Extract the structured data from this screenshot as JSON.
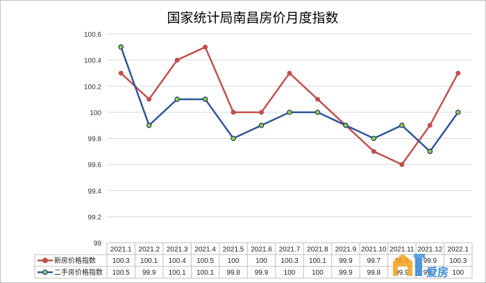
{
  "chart_data": {
    "type": "line",
    "title": "国家统计局南昌房价月度指数",
    "categories": [
      "2021.1",
      "2021.2",
      "2021.3",
      "2021.4",
      "2021.5",
      "2021.6",
      "2021.7",
      "2021.8",
      "2021.9",
      "2021.10",
      "2021.11",
      "2021.12",
      "2022.1"
    ],
    "ylim": [
      99,
      100.6
    ],
    "yticks": [
      "99",
      "99.2",
      "99.4",
      "99.6",
      "99.8",
      "100",
      "100.2",
      "100.4",
      "100.6"
    ],
    "grid": true,
    "legend": "data table below plot",
    "series": [
      {
        "name": "新房价格指数",
        "color": "#c0504d",
        "values": [
          100.3,
          100.1,
          100.4,
          100.5,
          100,
          100,
          100.3,
          100.1,
          99.9,
          99.7,
          99.6,
          99.9,
          100.3
        ],
        "labels": [
          "100.3",
          "100.1",
          "100.4",
          "100.5",
          "100",
          "100",
          "100.3",
          "100.1",
          "99.9",
          "99.7",
          "99.6",
          "99.9",
          "100.3"
        ]
      },
      {
        "name": "二手房价格指数",
        "color": "#2f5597",
        "marker_color": "#92d050",
        "values": [
          100.5,
          99.9,
          100.1,
          100.1,
          99.8,
          99.9,
          100,
          100,
          99.9,
          99.8,
          99.9,
          99.7,
          100
        ],
        "labels": [
          "100.5",
          "99.9",
          "100.1",
          "100.1",
          "99.8",
          "99.9",
          "100",
          "100",
          "99.9",
          "99.8",
          "99.9",
          "99.7",
          "100"
        ]
      }
    ]
  },
  "watermark": {
    "text": "爱房",
    "colors": [
      "#f7a21b",
      "#1f7fd3"
    ]
  }
}
